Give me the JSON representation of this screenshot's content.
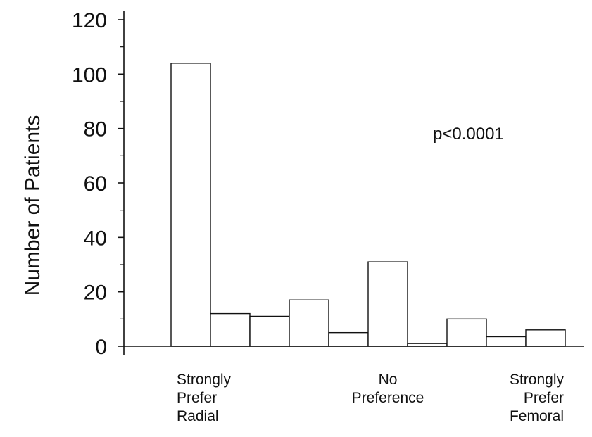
{
  "chart_data": {
    "type": "bar",
    "title": "",
    "xlabel": "",
    "ylabel": "Number of Patients",
    "ylim": [
      0,
      120
    ],
    "y_ticks": [
      0,
      20,
      40,
      60,
      80,
      100,
      120
    ],
    "grid": false,
    "bar_fill": "#ffffff",
    "bar_stroke": "#111111",
    "values": [
      104,
      12,
      11,
      17,
      5,
      31,
      1,
      10,
      3.5,
      6
    ],
    "x_labels": [
      {
        "bar_index": 0,
        "align": "start",
        "lines": [
          "Strongly",
          "Prefer",
          "Radial"
        ]
      },
      {
        "bar_index": 5,
        "align": "middle",
        "lines": [
          "No",
          "Preference"
        ]
      },
      {
        "bar_index": 9,
        "align": "end",
        "lines": [
          "Strongly",
          "Prefer",
          "Femoral"
        ]
      }
    ],
    "annotations": [
      {
        "text": "p<0.0001"
      }
    ]
  }
}
